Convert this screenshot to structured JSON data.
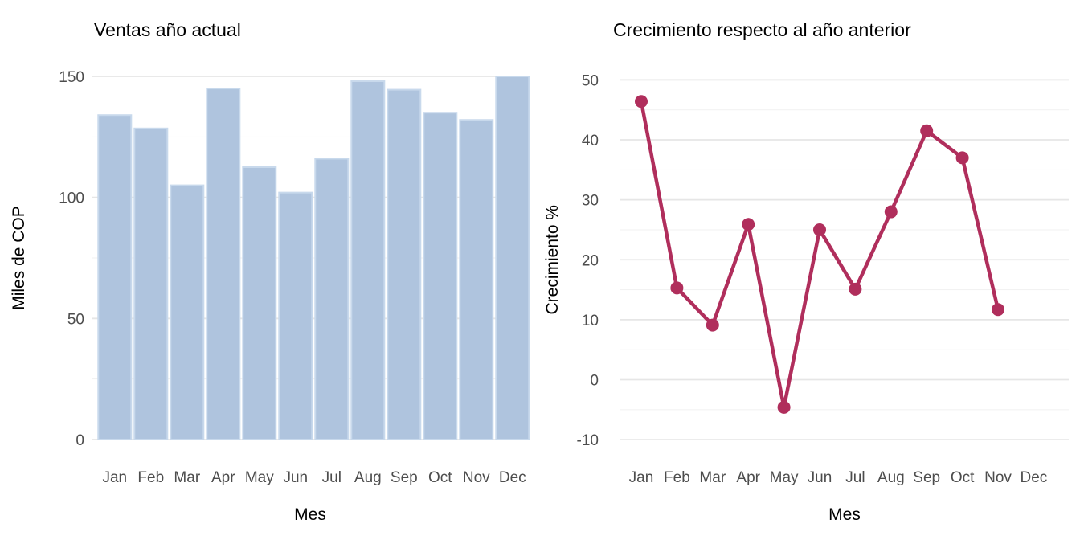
{
  "figure": {
    "background": "#FFFFFF",
    "tick_label_color": "#4D4D4D",
    "title_color": "#000000",
    "major_grid_color": "#E6E6E6",
    "minor_grid_color": "#F1F1F1"
  },
  "chart_data": [
    {
      "type": "bar",
      "title": "Ventas año actual",
      "xlabel": "Mes",
      "ylabel": "Miles de COP",
      "categories": [
        "Jan",
        "Feb",
        "Mar",
        "Apr",
        "May",
        "Jun",
        "Jul",
        "Aug",
        "Sep",
        "Oct",
        "Nov",
        "Dec"
      ],
      "values": [
        134,
        128.5,
        105,
        145,
        112.5,
        102,
        116,
        148,
        144.5,
        135,
        132,
        150
      ],
      "ylim": [
        0,
        157
      ],
      "yticks": [
        0,
        50,
        100,
        150
      ],
      "minor_gridlines": [
        25,
        75,
        125
      ],
      "grid": "on",
      "legend": "none",
      "bar_fill": "#AFC4DE",
      "bar_border": "#C8D9EC"
    },
    {
      "type": "line",
      "title": "Crecimiento respecto al año anterior",
      "xlabel": "Mes",
      "ylabel": "Crecimiento %",
      "categories": [
        "Jan",
        "Feb",
        "Mar",
        "Apr",
        "May",
        "Jun",
        "Jul",
        "Aug",
        "Sep",
        "Oct",
        "Nov",
        "Dec"
      ],
      "values": [
        46.4,
        15.3,
        9.1,
        25.9,
        -4.6,
        25.0,
        15.1,
        28.0,
        41.5,
        37.0,
        11.7,
        null
      ],
      "ylim": [
        -10,
        50
      ],
      "yticks": [
        50,
        40,
        30,
        20,
        10,
        0,
        -10
      ],
      "minor_gridlines": [
        45,
        35,
        25,
        15,
        5,
        -5
      ],
      "grid": "on",
      "legend": "none",
      "line_color": "#B02E5C",
      "marker": "circle"
    }
  ]
}
